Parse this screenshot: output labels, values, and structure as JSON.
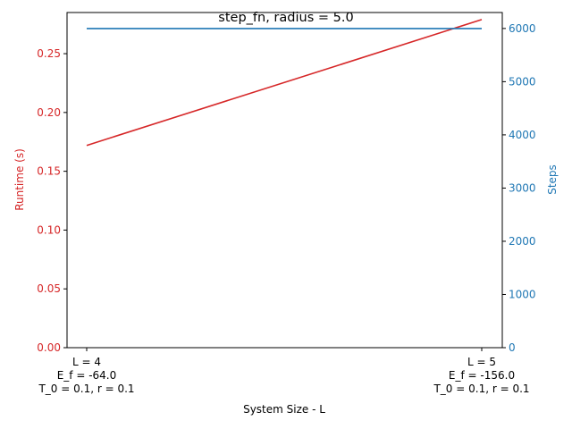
{
  "chart_data": {
    "type": "line",
    "title": "step_fn, radius = 5.0",
    "xlabel": "System Size - L",
    "categories": [
      [
        "L = 4",
        "E_f = -64.0",
        "T_0 = 0.1, r = 0.1"
      ],
      [
        "L = 5",
        "E_f = -156.0",
        "T_0 = 0.1, r = 0.1"
      ]
    ],
    "left_axis": {
      "label": "Runtime (s)",
      "color": "#d62728",
      "ylim": [
        0,
        0.285
      ],
      "ticks": [
        0.0,
        0.05,
        0.1,
        0.15,
        0.2,
        0.25
      ],
      "tick_labels": [
        "0.00",
        "0.05",
        "0.10",
        "0.15",
        "0.20",
        "0.25"
      ]
    },
    "right_axis": {
      "label": "Steps",
      "color": "#1f77b4",
      "ylim": [
        0,
        6300
      ],
      "ticks": [
        0,
        1000,
        2000,
        3000,
        4000,
        5000,
        6000
      ],
      "tick_labels": [
        "0",
        "1000",
        "2000",
        "3000",
        "4000",
        "5000",
        "6000"
      ]
    },
    "series": [
      {
        "axis": "left",
        "color": "#d62728",
        "values": [
          0.172,
          0.279
        ]
      },
      {
        "axis": "right",
        "color": "#1f77b4",
        "values": [
          6000,
          6000
        ]
      }
    ],
    "grid": false,
    "legend": "none"
  }
}
